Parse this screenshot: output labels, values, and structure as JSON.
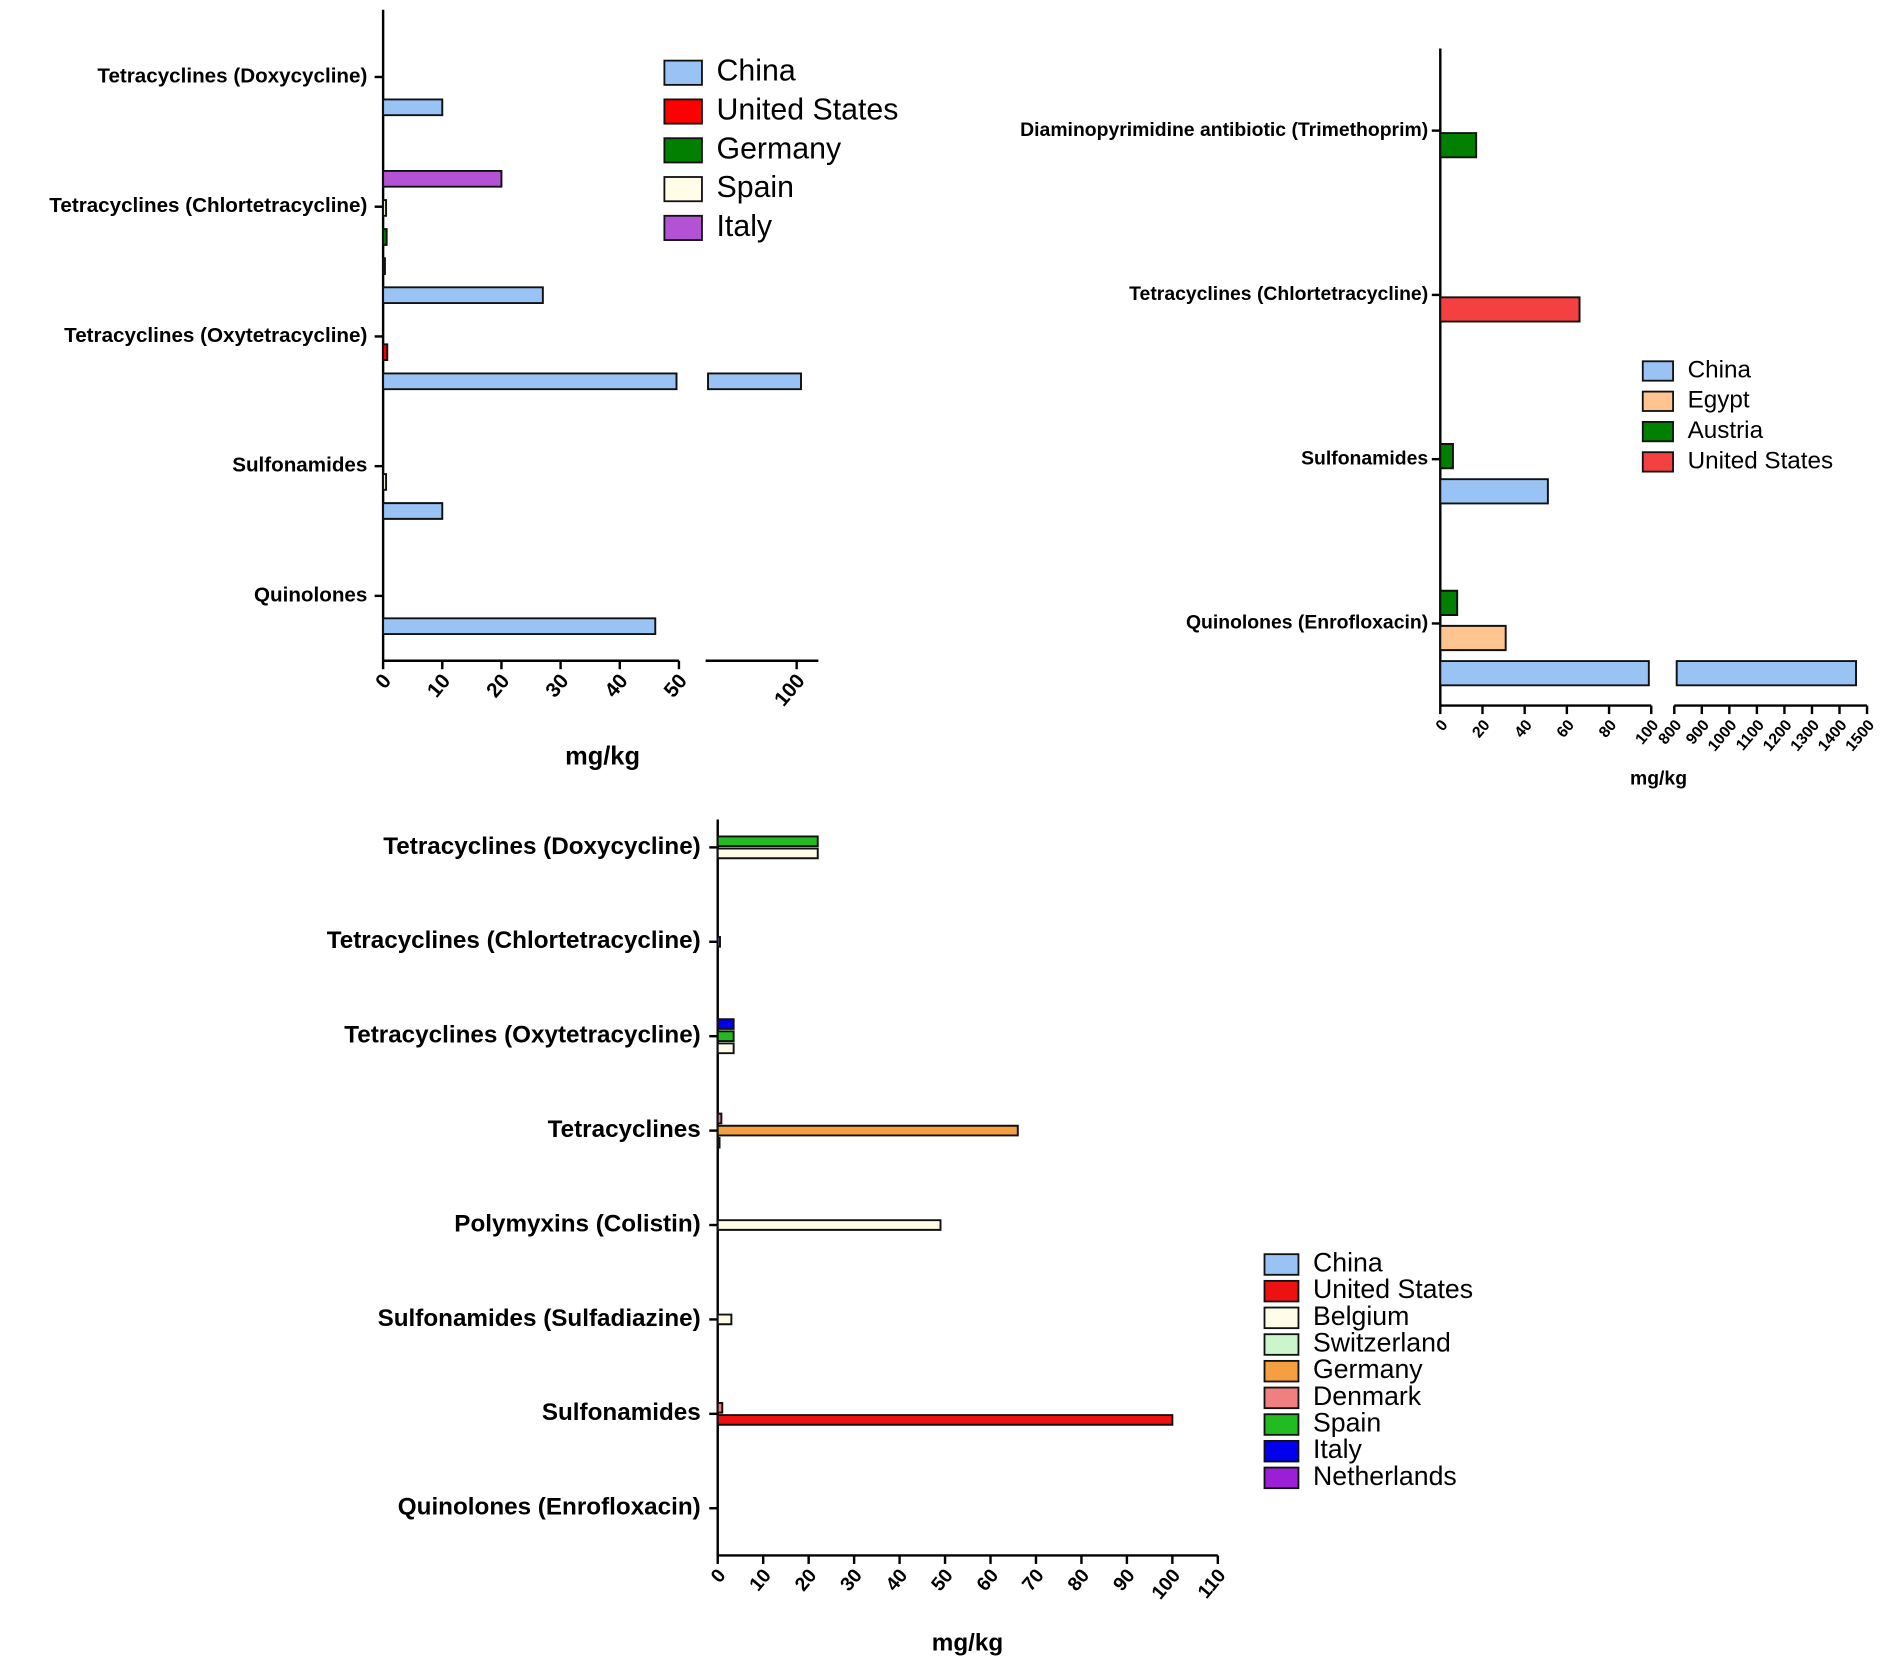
{
  "chart_data": [
    {
      "type": "bar",
      "orientation": "horizontal",
      "x_label": "mg/kg",
      "categories": [
        "Tetracyclines (Doxycycline)",
        "Tetracyclines (Chlortetracycline)",
        "Tetracyclines (Oxytetracycline)",
        "Sulfonamides",
        "Quinolones"
      ],
      "series": [
        {
          "name": "China",
          "color": "#99c2f5",
          "values": [
            10,
            27,
            101,
            10,
            46
          ]
        },
        {
          "name": "United States",
          "color": "#ff0000",
          "values": [
            null,
            0.3,
            0.7,
            null,
            null
          ]
        },
        {
          "name": "Germany",
          "color": "#007f00",
          "values": [
            null,
            0.6,
            null,
            null,
            null
          ]
        },
        {
          "name": "Spain",
          "color": "#fffde7",
          "values": [
            null,
            0.5,
            null,
            0.5,
            null
          ]
        },
        {
          "name": "Italy",
          "color": "#b452d6",
          "values": [
            null,
            20,
            null,
            null,
            null
          ]
        }
      ],
      "xlim": [
        0,
        105
      ],
      "xbreak": [
        50,
        79
      ],
      "xticks": [
        0,
        10,
        20,
        30,
        40,
        50,
        100
      ],
      "legend": "upper right"
    },
    {
      "type": "bar",
      "orientation": "horizontal",
      "x_label": "mg/kg",
      "categories": [
        "Diaminopyrimidine antibiotic (Trimethoprim)",
        "Tetracyclines (Chlortetracycline)",
        "Sulfonamides",
        "Quinolones (Enrofloxacin)"
      ],
      "series": [
        {
          "name": "China",
          "color": "#99c2f5",
          "values": [
            null,
            null,
            51,
            1460
          ]
        },
        {
          "name": "Egypt",
          "color": "#ffc490",
          "values": [
            null,
            null,
            null,
            31
          ]
        },
        {
          "name": "Austria",
          "color": "#007f00",
          "values": [
            17,
            null,
            6,
            8
          ]
        },
        {
          "name": "United States",
          "color": "#f44040",
          "values": [
            null,
            66,
            null,
            null
          ]
        }
      ],
      "xlim": [
        0,
        1500
      ],
      "xbreak": [
        100,
        800
      ],
      "xticks": [
        0,
        20,
        40,
        60,
        80,
        100,
        800,
        900,
        1000,
        1100,
        1200,
        1300,
        1400,
        1500
      ],
      "legend": "right"
    },
    {
      "type": "bar",
      "orientation": "horizontal",
      "x_label": "mg/kg",
      "categories": [
        "Tetracyclines (Doxycycline)",
        "Tetracyclines (Chlortetracycline)",
        "Tetracyclines (Oxytetracycline)",
        "Tetracyclines",
        "Polymyxins (Colistin)",
        "Sulfonamides (Sulfadiazine)",
        "Sulfonamides",
        "Quinolones (Enrofloxacin)"
      ],
      "series": [
        {
          "name": "China",
          "color": "#99c2f5",
          "values": [
            null,
            0.5,
            null,
            null,
            null,
            null,
            null,
            null
          ]
        },
        {
          "name": "United States",
          "color": "#ee1111",
          "values": [
            null,
            null,
            null,
            null,
            null,
            null,
            100,
            null
          ]
        },
        {
          "name": "Belgium",
          "color": "#fffde7",
          "values": [
            22,
            null,
            3.5,
            0.3,
            49,
            3,
            null,
            null
          ]
        },
        {
          "name": "Switzerland",
          "color": "#ccf5cc",
          "values": [
            null,
            null,
            null,
            null,
            null,
            null,
            null,
            null
          ]
        },
        {
          "name": "Germany",
          "color": "#f4a040",
          "values": [
            null,
            null,
            null,
            66,
            null,
            null,
            null,
            null
          ]
        },
        {
          "name": "Denmark",
          "color": "#f08080",
          "values": [
            null,
            null,
            null,
            0.8,
            null,
            null,
            1,
            null
          ]
        },
        {
          "name": "Spain",
          "color": "#22bb22",
          "values": [
            22,
            null,
            3.5,
            null,
            null,
            null,
            null,
            null
          ]
        },
        {
          "name": "Italy",
          "color": "#0000ee",
          "values": [
            null,
            null,
            3.5,
            null,
            null,
            null,
            null,
            null
          ]
        },
        {
          "name": "Netherlands",
          "color": "#9b1fd6",
          "values": [
            null,
            null,
            null,
            null,
            null,
            null,
            null,
            null
          ]
        }
      ],
      "xlim": [
        0,
        110
      ],
      "xticks": [
        0,
        10,
        20,
        30,
        40,
        50,
        60,
        70,
        80,
        90,
        100,
        110
      ],
      "legend": "right"
    }
  ]
}
